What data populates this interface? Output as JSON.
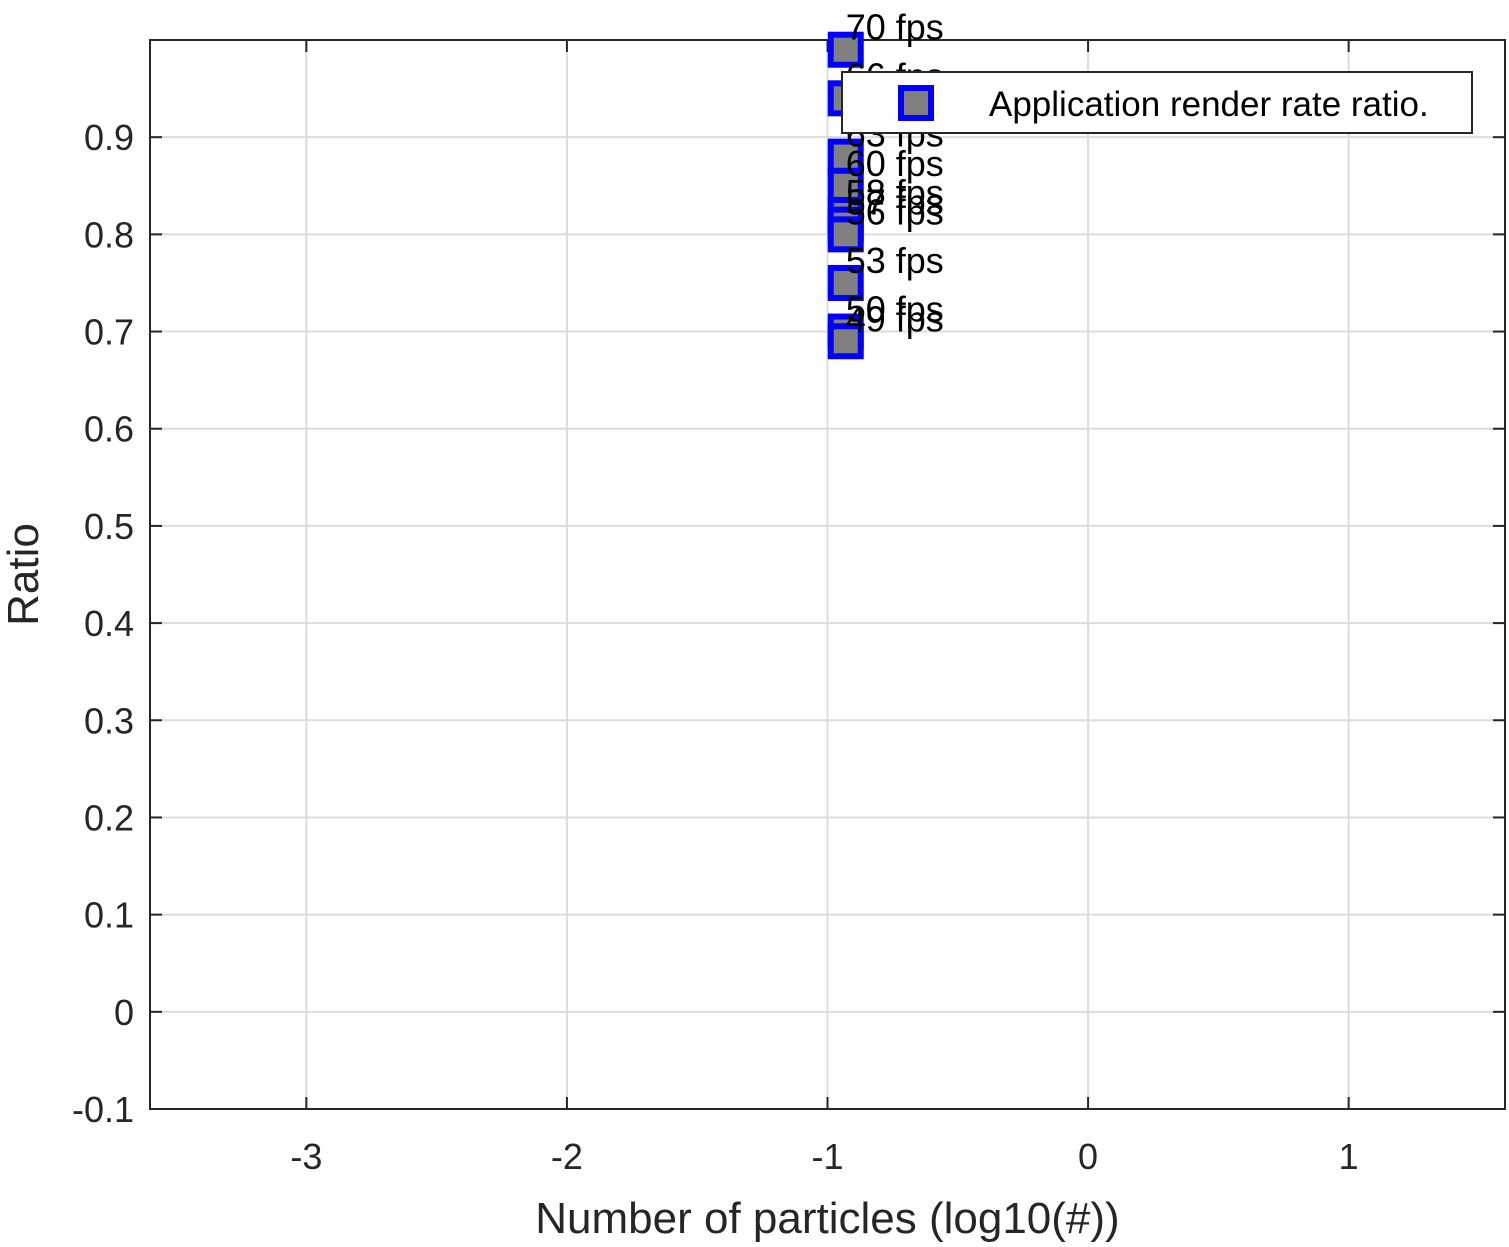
{
  "chart_data": {
    "type": "scatter",
    "title": "",
    "xlabel": "Number of particles (log10(#))",
    "ylabel": "Ratio",
    "xlim": [
      -3.6,
      1.6
    ],
    "ylim": [
      -0.1,
      1.0
    ],
    "xticks": [
      -3,
      -2,
      -1,
      0,
      1
    ],
    "yticks": [
      -0.1,
      0,
      0.1,
      0.2,
      0.3,
      0.4,
      0.5,
      0.6,
      0.7,
      0.8,
      0.9
    ],
    "grid": true,
    "legend": {
      "position": "top-right",
      "entries": [
        "Application render rate ratio."
      ]
    },
    "colors": {
      "marker_edge": "#0000ff",
      "marker_fill": "#808080",
      "grid": "#dcdcdc",
      "axis": "#262626"
    },
    "series": [
      {
        "name": "Application render rate ratio.",
        "points": [
          {
            "x": -0.93,
            "y": 0.99,
            "label": "70 fps"
          },
          {
            "x": -0.93,
            "y": 0.94,
            "label": "66 fps"
          },
          {
            "x": -0.93,
            "y": 0.88,
            "label": "63 fps"
          },
          {
            "x": -0.93,
            "y": 0.85,
            "label": "60 fps"
          },
          {
            "x": -0.93,
            "y": 0.82,
            "label": "58 fps"
          },
          {
            "x": -0.93,
            "y": 0.81,
            "label": "57 fps"
          },
          {
            "x": -0.93,
            "y": 0.8,
            "label": "56 fps"
          },
          {
            "x": -0.93,
            "y": 0.75,
            "label": "53 fps"
          },
          {
            "x": -0.93,
            "y": 0.7,
            "label": "50 fps"
          },
          {
            "x": -0.93,
            "y": 0.69,
            "label": "49 fps"
          }
        ]
      }
    ]
  }
}
